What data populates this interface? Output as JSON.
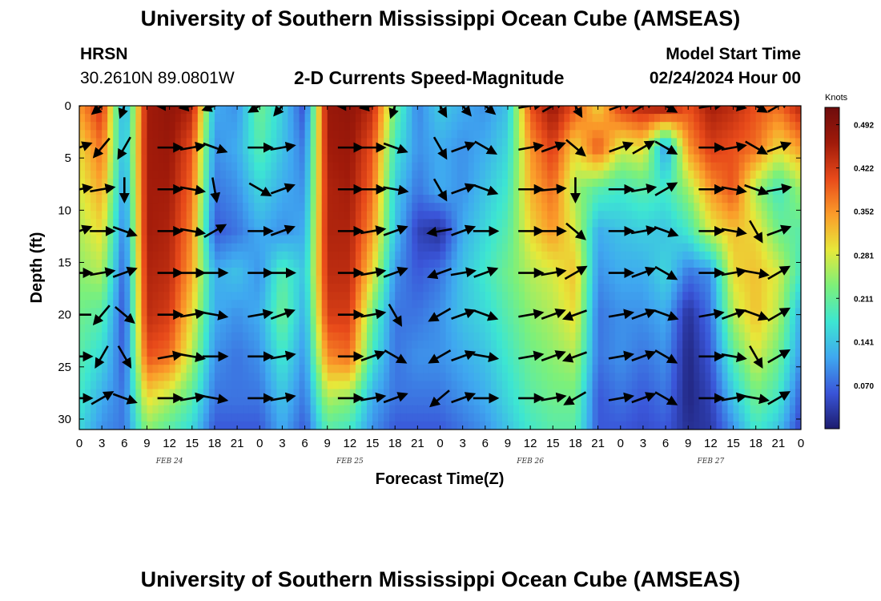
{
  "header": {
    "title": "University of Southern Mississippi Ocean Cube (AMSEAS)",
    "station": "HRSN",
    "coords": "30.2610N  89.0801W",
    "subtitle": "2-D Currents Speed-Magnitude",
    "model_start_label": "Model Start Time",
    "model_start_value": "02/24/2024 Hour 00"
  },
  "footer": {
    "title": "University of Southern Mississippi Ocean Cube (AMSEAS)"
  },
  "colors": {
    "background": "#ffffff",
    "arrow": "#000000",
    "colormap": [
      "#1c1c6e",
      "#3a55d8",
      "#3fa8f0",
      "#3de6d2",
      "#7cf07a",
      "#e6e83a",
      "#fb9c2a",
      "#e84a1a",
      "#a01a0a",
      "#6e0c0c"
    ]
  },
  "chart_data": {
    "type": "heatmap",
    "title": "2-D Currents Speed-Magnitude",
    "xlabel": "Forecast Time(Z)",
    "ylabel": "Depth (ft)",
    "x_units": "hours since 02/24/2024 00Z",
    "xlim": [
      0,
      96
    ],
    "ylim": [
      0,
      31
    ],
    "x_ticks": [
      0,
      3,
      6,
      9,
      12,
      15,
      18,
      21,
      24,
      27,
      30,
      33,
      36,
      39,
      42,
      45,
      48,
      51,
      54,
      57,
      60,
      63,
      66,
      69,
      72,
      75,
      78,
      81,
      84,
      87,
      90,
      93,
      96
    ],
    "x_tick_labels": [
      "0",
      "3",
      "6",
      "9",
      "12",
      "15",
      "18",
      "21",
      "0",
      "3",
      "6",
      "9",
      "12",
      "15",
      "18",
      "21",
      "0",
      "3",
      "6",
      "9",
      "12",
      "15",
      "18",
      "21",
      "0",
      "3",
      "6",
      "9",
      "12",
      "15",
      "18",
      "21",
      "0"
    ],
    "date_labels": [
      {
        "x": 12,
        "label": "FEB 24"
      },
      {
        "x": 36,
        "label": "FEB 25"
      },
      {
        "x": 60,
        "label": "FEB 26"
      },
      {
        "x": 84,
        "label": "FEB 27"
      }
    ],
    "y_ticks": [
      0,
      5,
      10,
      15,
      20,
      25,
      30
    ],
    "colorbar": {
      "units": "Knots",
      "min": 0.0,
      "max": 0.52,
      "ticks": [
        0.07,
        0.141,
        0.211,
        0.281,
        0.352,
        0.422,
        0.492
      ],
      "tick_labels": [
        "0.070",
        "0.141",
        "0.211",
        "0.281",
        "0.352",
        "0.422",
        "0.492"
      ]
    },
    "depth_levels": [
      0,
      4,
      8,
      12,
      16,
      20,
      24,
      28,
      31
    ],
    "time_hours": [
      0,
      3,
      6,
      9,
      12,
      15,
      18,
      21,
      24,
      27,
      30,
      33,
      36,
      39,
      42,
      45,
      48,
      51,
      54,
      57,
      60,
      63,
      66,
      69,
      72,
      75,
      78,
      81,
      84,
      87,
      90,
      93,
      96
    ],
    "speed_knots": [
      [
        0.35,
        0.43,
        0.1,
        0.46,
        0.48,
        0.45,
        0.12,
        0.1,
        0.22,
        0.15,
        0.05,
        0.47,
        0.48,
        0.44,
        0.22,
        0.09,
        0.15,
        0.12,
        0.1,
        0.14,
        0.4,
        0.47,
        0.4,
        0.3,
        0.42,
        0.45,
        0.48,
        0.4,
        0.46,
        0.44,
        0.4,
        0.38,
        0.45
      ],
      [
        0.3,
        0.38,
        0.12,
        0.46,
        0.47,
        0.4,
        0.1,
        0.12,
        0.2,
        0.14,
        0.08,
        0.46,
        0.47,
        0.4,
        0.18,
        0.1,
        0.12,
        0.1,
        0.12,
        0.16,
        0.35,
        0.42,
        0.3,
        0.4,
        0.28,
        0.3,
        0.1,
        0.35,
        0.42,
        0.4,
        0.38,
        0.3,
        0.35
      ],
      [
        0.28,
        0.34,
        0.1,
        0.46,
        0.46,
        0.38,
        0.08,
        0.1,
        0.16,
        0.12,
        0.1,
        0.45,
        0.46,
        0.38,
        0.15,
        0.08,
        0.12,
        0.1,
        0.14,
        0.18,
        0.33,
        0.38,
        0.25,
        0.2,
        0.18,
        0.2,
        0.18,
        0.25,
        0.35,
        0.4,
        0.25,
        0.18,
        0.25
      ],
      [
        0.26,
        0.3,
        0.08,
        0.46,
        0.45,
        0.36,
        0.06,
        0.08,
        0.12,
        0.1,
        0.12,
        0.45,
        0.45,
        0.35,
        0.14,
        0.04,
        0.02,
        0.12,
        0.16,
        0.2,
        0.3,
        0.35,
        0.28,
        0.12,
        0.14,
        0.15,
        0.14,
        0.18,
        0.28,
        0.32,
        0.3,
        0.22,
        0.2
      ],
      [
        0.24,
        0.26,
        0.06,
        0.45,
        0.44,
        0.34,
        0.12,
        0.14,
        0.1,
        0.2,
        0.14,
        0.44,
        0.44,
        0.3,
        0.1,
        0.06,
        0.08,
        0.14,
        0.18,
        0.22,
        0.26,
        0.28,
        0.32,
        0.1,
        0.12,
        0.12,
        0.16,
        0.08,
        0.1,
        0.3,
        0.32,
        0.28,
        0.18
      ],
      [
        0.22,
        0.2,
        0.05,
        0.44,
        0.42,
        0.3,
        0.12,
        0.1,
        0.12,
        0.22,
        0.12,
        0.42,
        0.42,
        0.22,
        0.08,
        0.08,
        0.1,
        0.14,
        0.16,
        0.2,
        0.24,
        0.26,
        0.3,
        0.08,
        0.1,
        0.1,
        0.12,
        0.02,
        0.08,
        0.26,
        0.32,
        0.26,
        0.12
      ],
      [
        0.2,
        0.16,
        0.06,
        0.4,
        0.38,
        0.26,
        0.1,
        0.08,
        0.1,
        0.18,
        0.1,
        0.36,
        0.38,
        0.18,
        0.08,
        0.1,
        0.1,
        0.12,
        0.14,
        0.18,
        0.22,
        0.24,
        0.26,
        0.08,
        0.1,
        0.08,
        0.1,
        0.01,
        0.06,
        0.2,
        0.28,
        0.22,
        0.1
      ],
      [
        0.18,
        0.12,
        0.08,
        0.3,
        0.26,
        0.2,
        0.08,
        0.08,
        0.08,
        0.14,
        0.08,
        0.26,
        0.24,
        0.12,
        0.08,
        0.08,
        0.08,
        0.1,
        0.12,
        0.16,
        0.2,
        0.22,
        0.22,
        0.06,
        0.08,
        0.06,
        0.08,
        0.01,
        0.04,
        0.14,
        0.22,
        0.18,
        0.06
      ],
      [
        0.16,
        0.1,
        0.08,
        0.24,
        0.2,
        0.16,
        0.06,
        0.06,
        0.06,
        0.12,
        0.06,
        0.2,
        0.18,
        0.1,
        0.06,
        0.06,
        0.06,
        0.08,
        0.1,
        0.14,
        0.18,
        0.2,
        0.2,
        0.06,
        0.06,
        0.05,
        0.06,
        0.02,
        0.03,
        0.1,
        0.18,
        0.14,
        0.04
      ]
    ],
    "vectors_note": "Direction arrows drawn at each depth level; shown as current vectors.",
    "vector_depths": [
      0,
      4,
      8,
      12,
      16,
      20,
      24,
      28
    ],
    "vector_times": [
      0,
      3,
      6,
      12,
      15,
      18,
      24,
      27,
      36,
      39,
      42,
      48,
      51,
      54,
      60,
      63,
      66,
      72,
      75,
      78,
      84,
      87,
      90,
      93
    ],
    "vector_angles_deg": [
      [
        200,
        220,
        250,
        180,
        190,
        200,
        210,
        230,
        180,
        190,
        250,
        300,
        310,
        320,
        10,
        30,
        300,
        20,
        30,
        330,
        10,
        350,
        330,
        30
      ],
      [
        20,
        230,
        240,
        0,
        10,
        340,
        0,
        10,
        0,
        0,
        340,
        300,
        20,
        330,
        10,
        20,
        320,
        20,
        30,
        330,
        0,
        10,
        330,
        20
      ],
      [
        10,
        10,
        270,
        0,
        350,
        280,
        330,
        20,
        0,
        0,
        350,
        300,
        20,
        340,
        0,
        5,
        270,
        0,
        10,
        30,
        0,
        350,
        340,
        10
      ],
      [
        20,
        0,
        340,
        0,
        350,
        30,
        0,
        20,
        0,
        10,
        20,
        190,
        20,
        0,
        0,
        0,
        320,
        0,
        10,
        340,
        0,
        350,
        300,
        20
      ],
      [
        0,
        10,
        20,
        0,
        0,
        0,
        0,
        0,
        0,
        10,
        20,
        200,
        10,
        20,
        0,
        10,
        30,
        0,
        20,
        330,
        0,
        10,
        350,
        30
      ],
      [
        180,
        230,
        320,
        0,
        10,
        350,
        10,
        20,
        0,
        10,
        300,
        210,
        20,
        340,
        10,
        20,
        200,
        10,
        20,
        340,
        10,
        20,
        340,
        30
      ],
      [
        0,
        240,
        300,
        10,
        350,
        0,
        0,
        10,
        0,
        20,
        330,
        210,
        20,
        350,
        10,
        20,
        200,
        10,
        20,
        330,
        0,
        350,
        300,
        30
      ],
      [
        0,
        30,
        340,
        0,
        10,
        350,
        0,
        10,
        0,
        10,
        20,
        220,
        20,
        0,
        0,
        10,
        210,
        10,
        20,
        330,
        0,
        10,
        350,
        30
      ]
    ]
  }
}
